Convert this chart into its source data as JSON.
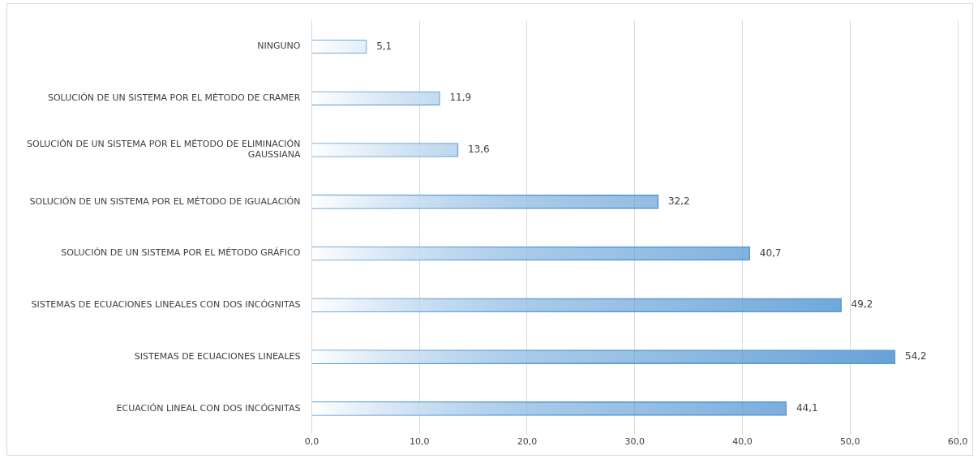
{
  "chart_data": {
    "type": "bar",
    "orientation": "horizontal",
    "categories": [
      "NINGUNO",
      "SOLUCIÓN DE UN SISTEMA POR EL MÉTODO DE CRAMER",
      "SOLUCIÓN DE UN SISTEMA POR EL MÉTODO DE ELIMINACIÓN GAUSSIANA",
      "SOLUCIÓN DE UN SISTEMA POR EL MÉTODO DE IGUALACIÓN",
      "SOLUCIÓN DE UN SISTEMA POR EL MÉTODO GRÁFICO",
      "SISTEMAS DE ECUACIONES LINEALES CON DOS INCÓGNITAS",
      "SISTEMAS DE ECUACIONES LINEALES",
      "ECUACIÓN LINEAL CON DOS INCÓGNITAS"
    ],
    "values": [
      5.1,
      11.9,
      13.6,
      32.2,
      40.7,
      49.2,
      54.2,
      44.1
    ],
    "value_labels": [
      "5,1",
      "11,9",
      "13,6",
      "32,2",
      "40,7",
      "49,2",
      "54,2",
      "44,1"
    ],
    "color": "#5b9bd5",
    "xlim": [
      0,
      60
    ],
    "xticks": [
      {
        "value": 0,
        "label": "0,0"
      },
      {
        "value": 10,
        "label": "10,0"
      },
      {
        "value": 20,
        "label": "20,0"
      },
      {
        "value": 30,
        "label": "30,0"
      },
      {
        "value": 40,
        "label": "40,0"
      },
      {
        "value": 50,
        "label": "50,0"
      },
      {
        "value": 60,
        "label": "60,0"
      }
    ],
    "grid": "x",
    "legend": false
  }
}
